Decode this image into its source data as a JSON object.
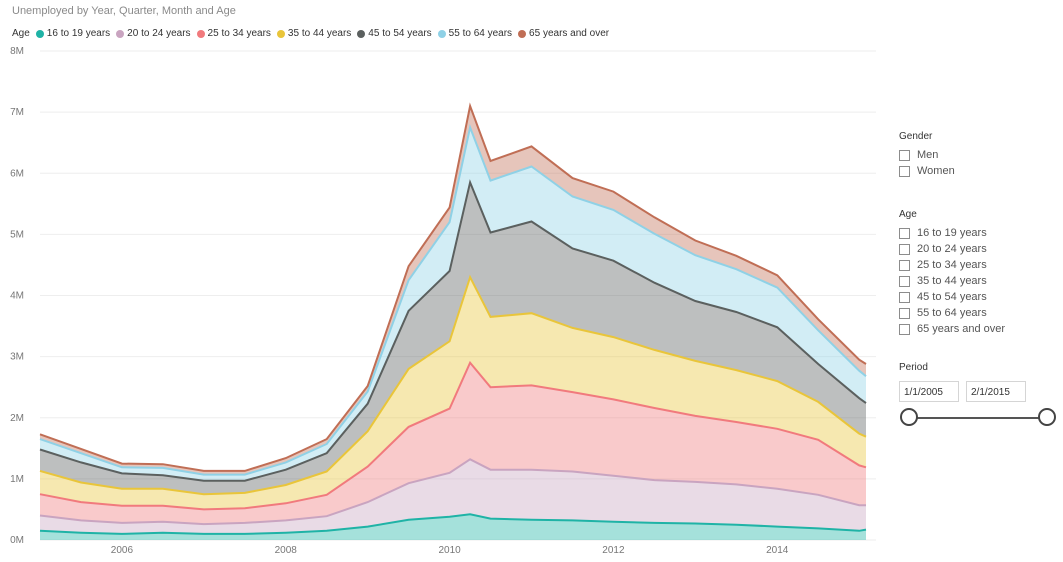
{
  "title": "Unemployed by Year, Quarter, Month and Age",
  "legend": {
    "title": "Age",
    "items": [
      {
        "label": "16 to 19 years",
        "color": "#1fb3a6"
      },
      {
        "label": "20 to 24 years",
        "color": "#c9a4c0"
      },
      {
        "label": "25 to 34 years",
        "color": "#f17a7d"
      },
      {
        "label": "35 to 44 years",
        "color": "#e9c53a"
      },
      {
        "label": "45 to 54 years",
        "color": "#5b605f"
      },
      {
        "label": "55 to 64 years",
        "color": "#8fd1e6"
      },
      {
        "label": "65 years and over",
        "color": "#c06e55"
      }
    ]
  },
  "slicers": {
    "gender": {
      "title": "Gender",
      "items": [
        "Men",
        "Women"
      ]
    },
    "age": {
      "title": "Age",
      "items": [
        "16 to 19 years",
        "20 to 24 years",
        "25 to 34 years",
        "35 to 44 years",
        "45 to 54 years",
        "55 to 64 years",
        "65 years and over"
      ]
    },
    "period": {
      "title": "Period",
      "start": "1/1/2005",
      "end": "2/1/2015"
    }
  },
  "chart_data": {
    "type": "area",
    "stacked": true,
    "title": "Unemployed by Year, Quarter, Month and Age",
    "xlabel": "",
    "ylabel": "",
    "x_ticks": [
      "2006",
      "2008",
      "2010",
      "2012",
      "2014"
    ],
    "y_ticks": [
      "0M",
      "1M",
      "2M",
      "3M",
      "4M",
      "5M",
      "6M",
      "7M",
      "8M"
    ],
    "ylim": [
      0,
      8000000
    ],
    "xlim": [
      "2005-01",
      "2015-02"
    ],
    "legend_position": "top-left",
    "grid": true,
    "x": [
      "2005-01",
      "2005-07",
      "2006-01",
      "2006-07",
      "2007-01",
      "2007-07",
      "2008-01",
      "2008-07",
      "2009-01",
      "2009-07",
      "2010-01",
      "2010-04",
      "2010-07",
      "2011-01",
      "2011-07",
      "2012-01",
      "2012-07",
      "2013-01",
      "2013-07",
      "2014-01",
      "2014-07",
      "2015-01",
      "2015-02"
    ],
    "series": [
      {
        "name": "16 to 19 years",
        "values": [
          0.15,
          0.12,
          0.1,
          0.12,
          0.1,
          0.1,
          0.12,
          0.15,
          0.22,
          0.33,
          0.38,
          0.42,
          0.35,
          0.33,
          0.32,
          0.3,
          0.28,
          0.27,
          0.25,
          0.22,
          0.19,
          0.15,
          0.17
        ]
      },
      {
        "name": "20 to 24 years",
        "values": [
          0.25,
          0.2,
          0.18,
          0.18,
          0.16,
          0.18,
          0.2,
          0.24,
          0.4,
          0.6,
          0.72,
          0.9,
          0.8,
          0.82,
          0.8,
          0.75,
          0.7,
          0.68,
          0.66,
          0.62,
          0.55,
          0.42,
          0.4
        ]
      },
      {
        "name": "25 to 34 years",
        "values": [
          0.35,
          0.3,
          0.28,
          0.26,
          0.24,
          0.24,
          0.28,
          0.35,
          0.58,
          0.92,
          1.05,
          1.58,
          1.35,
          1.38,
          1.3,
          1.25,
          1.18,
          1.08,
          1.02,
          0.98,
          0.9,
          0.65,
          0.62
        ]
      },
      {
        "name": "35 to 44 years",
        "values": [
          0.38,
          0.32,
          0.28,
          0.28,
          0.25,
          0.25,
          0.3,
          0.38,
          0.58,
          0.95,
          1.1,
          1.4,
          1.15,
          1.18,
          1.05,
          1.02,
          0.95,
          0.9,
          0.85,
          0.78,
          0.62,
          0.52,
          0.5
        ]
      },
      {
        "name": "45 to 54 years",
        "values": [
          0.35,
          0.33,
          0.25,
          0.22,
          0.22,
          0.2,
          0.25,
          0.3,
          0.45,
          0.95,
          1.15,
          1.55,
          1.38,
          1.5,
          1.3,
          1.25,
          1.1,
          0.98,
          0.95,
          0.88,
          0.62,
          0.58,
          0.55
        ]
      },
      {
        "name": "55 to 64 years",
        "values": [
          0.17,
          0.15,
          0.1,
          0.12,
          0.1,
          0.1,
          0.12,
          0.15,
          0.2,
          0.5,
          0.8,
          0.9,
          0.85,
          0.9,
          0.85,
          0.83,
          0.8,
          0.75,
          0.7,
          0.65,
          0.55,
          0.45,
          0.44
        ]
      },
      {
        "name": "65 years and over",
        "values": [
          0.08,
          0.07,
          0.06,
          0.06,
          0.06,
          0.06,
          0.07,
          0.08,
          0.09,
          0.23,
          0.24,
          0.35,
          0.32,
          0.33,
          0.3,
          0.3,
          0.27,
          0.24,
          0.22,
          0.2,
          0.18,
          0.18,
          0.2
        ]
      }
    ]
  }
}
